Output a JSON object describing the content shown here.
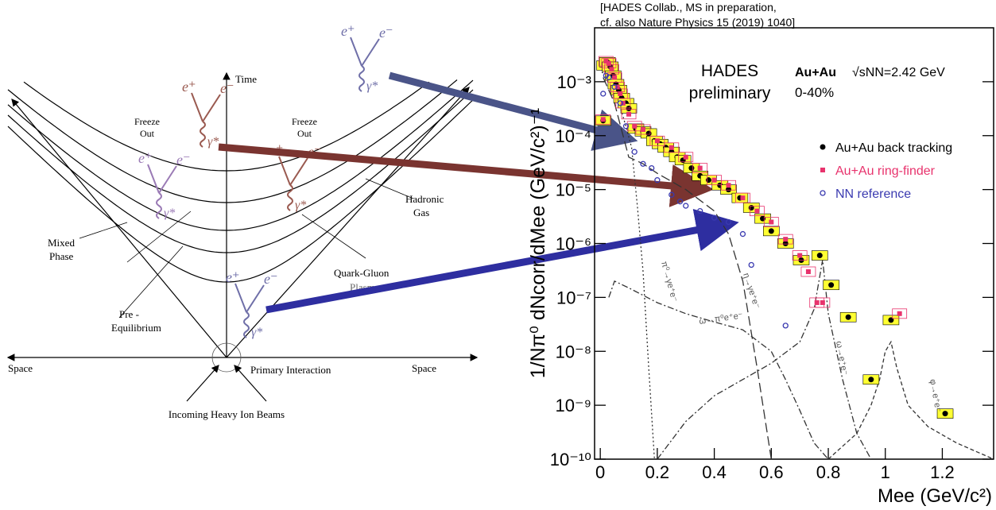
{
  "diagram": {
    "time": "Time",
    "freeze_out": [
      "Freeze",
      "Out"
    ],
    "hadronic_gas": [
      "Hadronic",
      "Gas"
    ],
    "mixed_phase": [
      "Mixed",
      "Phase"
    ],
    "qgp": [
      "Quark-Gluon",
      "Plasma"
    ],
    "pre_equilibrium": [
      "Pre -",
      "Equilibrium"
    ],
    "space": "Space",
    "primary_interaction": "Primary Interaction",
    "beams": "Incoming Heavy Ion Beams",
    "particles": [
      "e⁺",
      "e⁻",
      "γ*"
    ]
  },
  "chart_data": {
    "type": "scatter",
    "citation": [
      "[HADES Collab., MS in preparation,",
      "cf. also Nature Physics 15 (2019) 1040]"
    ],
    "annotation": [
      "HADES",
      "preliminary"
    ],
    "system": "Au+Au",
    "energy": "√sNN=2.42 GeV",
    "centrality": "0-40%",
    "xlabel": "Mee (GeV/c²)",
    "ylabel": "1/Nπ⁰ dNcorr/dMee (GeV/c²)⁻¹",
    "xlim": [
      -0.02,
      1.38
    ],
    "ylim": [
      1e-10,
      0.01
    ],
    "log_y": true,
    "legend": "upper right",
    "xticks": [
      0,
      0.2,
      0.4,
      0.6,
      0.8,
      1,
      1.2
    ],
    "yticks": [
      {
        "value": 1e-10,
        "label": "10⁻¹⁰"
      },
      {
        "value": 1e-09,
        "label": "10⁻⁹"
      },
      {
        "value": 1e-08,
        "label": "10⁻⁸"
      },
      {
        "value": 1e-07,
        "label": "10⁻⁷"
      },
      {
        "value": 1e-06,
        "label": "10⁻⁶"
      },
      {
        "value": 1e-05,
        "label": "10⁻⁵"
      },
      {
        "value": 0.0001,
        "label": "10⁻⁴"
      },
      {
        "value": 0.001,
        "label": "10⁻³"
      }
    ],
    "series": [
      {
        "name": "Au+Au back tracking",
        "color": "#000000",
        "marker": "dot",
        "box_color": "#ffff33",
        "x": [
          0.01,
          0.015,
          0.025,
          0.035,
          0.045,
          0.055,
          0.065,
          0.075,
          0.09,
          0.1,
          0.125,
          0.15,
          0.17,
          0.19,
          0.21,
          0.23,
          0.25,
          0.27,
          0.29,
          0.32,
          0.35,
          0.38,
          0.42,
          0.45,
          0.49,
          0.53,
          0.57,
          0.6,
          0.65,
          0.705,
          0.77,
          0.81,
          0.87,
          0.95,
          1.02,
          1.21
        ],
        "values": [
          0.00019,
          0.002,
          0.0023,
          0.0019,
          0.0013,
          0.0009,
          0.0007,
          0.0005,
          0.0004,
          0.00032,
          0.000135,
          0.00012,
          0.00011,
          8e-05,
          7e-05,
          6e-05,
          5e-05,
          4e-05,
          3.5e-05,
          2.5e-05,
          1.8e-05,
          1.5e-05,
          1.2e-05,
          1e-05,
          7e-06,
          4.6e-06,
          2.9e-06,
          1.7e-06,
          1e-06,
          4.9e-07,
          6e-07,
          1.7e-07,
          4.3e-08,
          3e-09,
          3.8e-08,
          7e-10
        ]
      },
      {
        "name": "Au+Au ring-finder",
        "color": "#e8336d",
        "marker": "square",
        "x": [
          0.01,
          0.02,
          0.03,
          0.04,
          0.05,
          0.06,
          0.07,
          0.08,
          0.1,
          0.12,
          0.15,
          0.2,
          0.25,
          0.3,
          0.35,
          0.4,
          0.45,
          0.5,
          0.55,
          0.6,
          0.65,
          0.7,
          0.73,
          0.76,
          0.78,
          1.05
        ],
        "values": [
          0.0002,
          0.0024,
          0.0022,
          0.0017,
          0.0012,
          0.0008,
          0.0006,
          0.0004,
          0.00025,
          0.00015,
          0.00013,
          8e-05,
          6e-05,
          4e-05,
          2.5e-05,
          1.5e-05,
          1.2e-05,
          7e-06,
          4e-06,
          2.5e-06,
          1.2e-06,
          6e-07,
          3e-07,
          8e-08,
          8e-08,
          5e-08
        ]
      },
      {
        "name": "NN reference",
        "color": "#3a3ab0",
        "marker": "circle",
        "x": [
          0.01,
          0.02,
          0.03,
          0.05,
          0.07,
          0.09,
          0.12,
          0.15,
          0.18,
          0.2,
          0.25,
          0.28,
          0.3,
          0.35,
          0.4,
          0.45,
          0.5,
          0.53,
          0.65
        ],
        "values": [
          0.0006,
          0.0013,
          0.0012,
          0.0008,
          0.0004,
          0.00015,
          5e-05,
          3e-05,
          2.5e-05,
          1.5e-05,
          8e-06,
          6e-06,
          5e-06,
          4e-06,
          3e-06,
          2.5e-06,
          1.5e-06,
          4e-07,
          3e-08
        ]
      }
    ],
    "curves": [
      {
        "name": "π⁰→γe⁺e⁻",
        "dash": "2,3",
        "x": [
          0.005,
          0.03,
          0.06,
          0.09,
          0.11,
          0.13,
          0.15,
          0.17,
          0.19
        ],
        "values": [
          0.0015,
          0.0013,
          0.0005,
          0.00015,
          6e-05,
          5e-06,
          3e-07,
          5e-09,
          1e-10
        ]
      },
      {
        "name": "η→γe⁺e⁻",
        "dash": "12,5",
        "x": [
          0.01,
          0.05,
          0.1,
          0.15,
          0.2,
          0.3,
          0.4,
          0.45,
          0.5,
          0.55,
          0.6
        ],
        "values": [
          0.0012,
          0.0004,
          4e-05,
          3e-05,
          2e-05,
          1e-05,
          4e-06,
          1.5e-06,
          2e-07,
          5e-09,
          1e-10
        ]
      },
      {
        "name": "ω→π⁰e⁺e⁻",
        "dash": "8,3,2,3",
        "x": [
          0.03,
          0.05,
          0.1,
          0.2,
          0.3,
          0.4,
          0.5,
          0.6,
          0.65,
          0.7,
          0.75,
          0.8
        ],
        "values": [
          1e-07,
          2e-07,
          1.5e-07,
          8e-08,
          5e-08,
          3.5e-08,
          2.5e-08,
          1e-08,
          3e-09,
          8e-10,
          2e-10,
          1e-10
        ]
      },
      {
        "name": "ω→e⁺e⁻",
        "dash": "8,3,2,3",
        "x": [
          0.2,
          0.3,
          0.4,
          0.5,
          0.6,
          0.7,
          0.75,
          0.78,
          0.8,
          0.85,
          0.9,
          0.95
        ],
        "values": [
          1e-10,
          5e-10,
          1.5e-09,
          3e-09,
          6e-09,
          1.5e-08,
          6e-08,
          5e-07,
          5e-08,
          3e-09,
          3e-10,
          1e-10
        ]
      },
      {
        "name": "φ→e⁺e⁻",
        "dash": "5,3",
        "x": [
          0.8,
          0.9,
          0.95,
          0.98,
          1.0,
          1.02,
          1.04,
          1.08,
          1.15,
          1.25,
          1.38
        ],
        "values": [
          1e-10,
          3e-10,
          1e-09,
          3e-09,
          1e-08,
          1.5e-08,
          5e-09,
          1e-09,
          4e-10,
          2e-10,
          1e-10
        ]
      }
    ]
  }
}
